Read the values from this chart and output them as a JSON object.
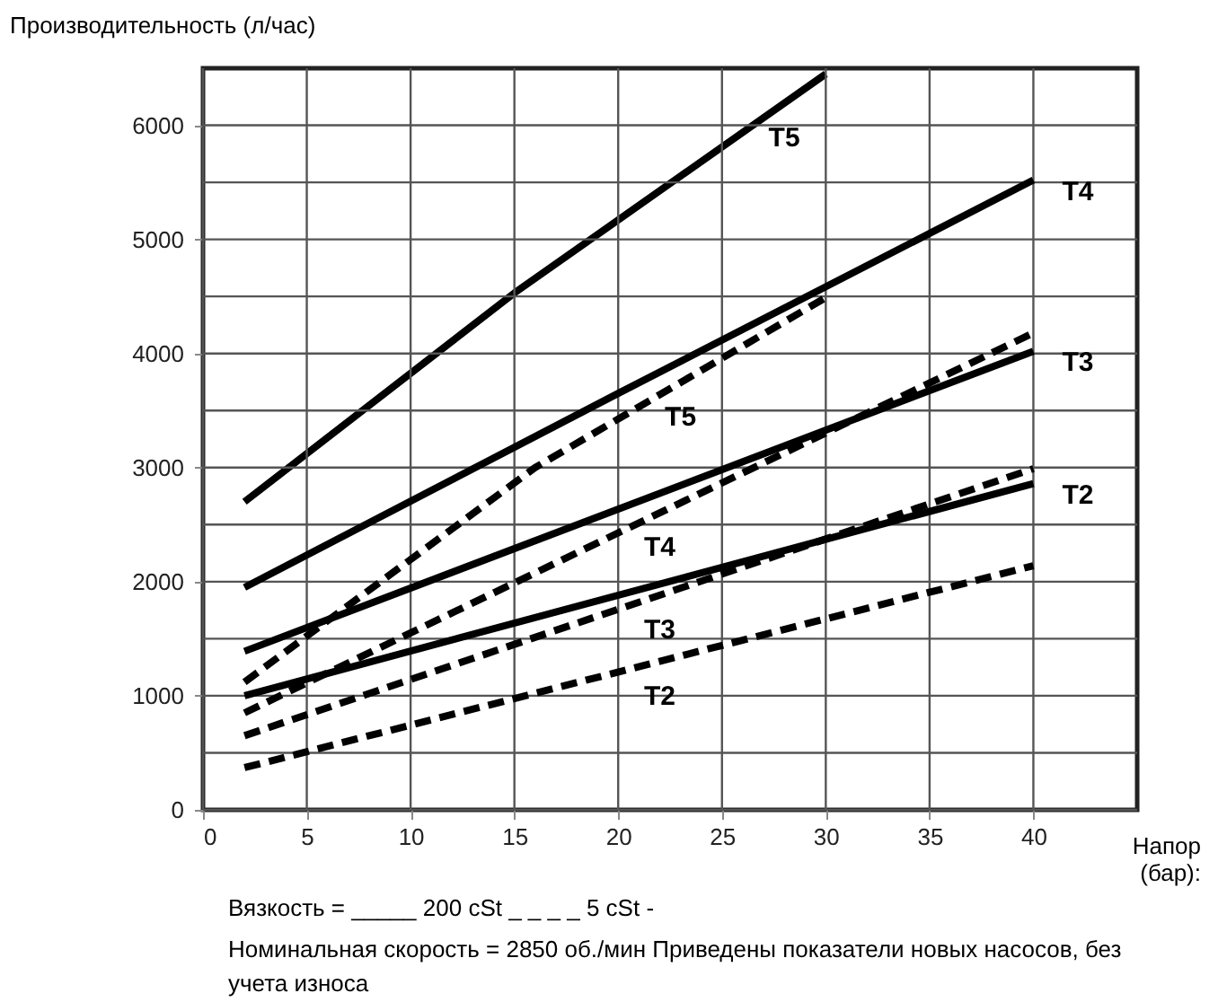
{
  "chart_data": {
    "type": "line",
    "ylabel": "Производительность (л/час)",
    "xlabel": "Напор (бар):",
    "xlim": [
      0,
      45
    ],
    "xticks": [
      0,
      5,
      10,
      15,
      20,
      25,
      30,
      35,
      40
    ],
    "ylim": [
      0,
      6500
    ],
    "yticks": [
      0,
      {
        "value": 500,
        "label": null
      },
      1000,
      {
        "value": 1500,
        "label": null
      },
      2000,
      {
        "value": 2500,
        "label": null
      },
      3000,
      {
        "value": 3500,
        "label": null
      },
      4000,
      {
        "value": 4500,
        "label": null
      },
      5000,
      {
        "value": 5500,
        "label": null
      },
      6000
    ],
    "grid": true,
    "marker": "none",
    "series": [
      {
        "color": "#000000",
        "line_style": "solid",
        "x": [
          2,
          15,
          30
        ],
        "values": [
          2700,
          4530,
          6450
        ]
      },
      {
        "color": "#000000",
        "line_style": "solid",
        "x": [
          2,
          20,
          40
        ],
        "values": [
          1950,
          3650,
          5520
        ]
      },
      {
        "color": "#000000",
        "line_style": "solid",
        "x": [
          2,
          40
        ],
        "values": [
          1390,
          4020
        ]
      },
      {
        "color": "#000000",
        "line_style": "solid",
        "x": [
          2,
          40
        ],
        "values": [
          1000,
          2860
        ]
      },
      {
        "color": "#000000",
        "line_style": "dashed",
        "x": [
          2,
          16,
          30
        ],
        "values": [
          1120,
          3000,
          4490
        ]
      },
      {
        "color": "#000000",
        "line_style": "dashed",
        "x": [
          2,
          40
        ],
        "values": [
          850,
          4180
        ]
      },
      {
        "color": "#000000",
        "line_style": "dashed",
        "x": [
          2,
          40
        ],
        "values": [
          650,
          2990
        ]
      },
      {
        "color": "#000000",
        "line_style": "dashed",
        "x": [
          2,
          40
        ],
        "values": [
          370,
          2140
        ]
      }
    ],
    "annotations": [
      {
        "text": "T5",
        "x": 28,
        "y": 6194
      },
      {
        "text": "T4",
        "x": 40,
        "y": 5520
      },
      {
        "text": "T3",
        "x": 40,
        "y": 4020
      },
      {
        "text": "T2",
        "x": 40,
        "y": 2860
      },
      {
        "text": "T5",
        "x": 23,
        "y": 3745
      },
      {
        "text": "T4",
        "x": 22,
        "y": 2603
      },
      {
        "text": "T3",
        "x": 22,
        "y": 1882
      },
      {
        "text": "T2",
        "x": 22,
        "y": 1302
      },
      "Вязкость    =   _____ 200 cSt   _ _ _ _     5 cSt -",
      "Номинальная скорость = 2850 об./мин Приведены показатели новых насосов, без учета износа"
    ]
  }
}
